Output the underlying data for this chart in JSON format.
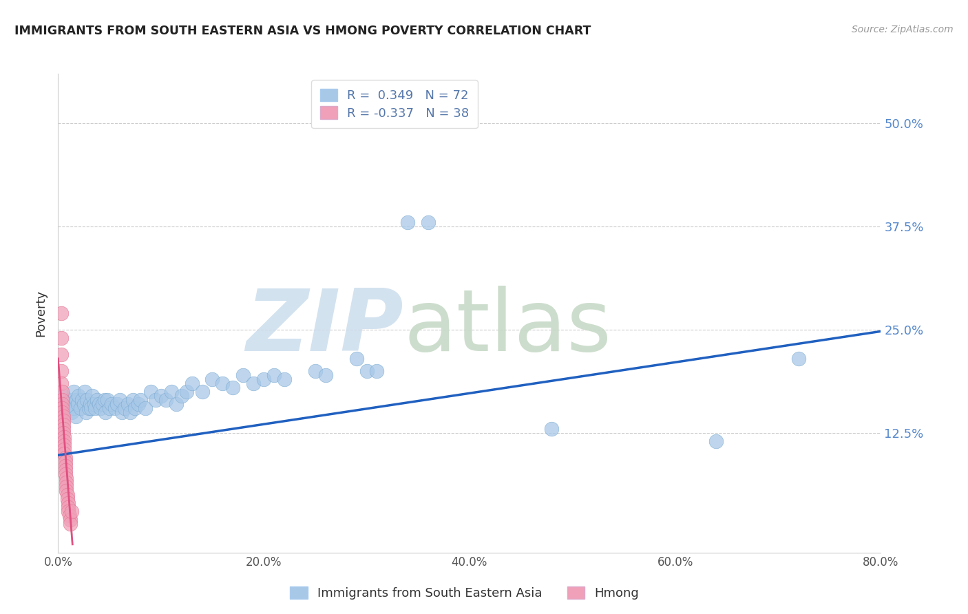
{
  "title": "IMMIGRANTS FROM SOUTH EASTERN ASIA VS HMONG POVERTY CORRELATION CHART",
  "source": "Source: ZipAtlas.com",
  "ylabel": "Poverty",
  "xlim": [
    0.0,
    0.8
  ],
  "ylim": [
    -0.02,
    0.56
  ],
  "ytick_vals": [
    0.125,
    0.25,
    0.375,
    0.5
  ],
  "ytick_labels": [
    "12.5%",
    "25.0%",
    "37.5%",
    "50.0%"
  ],
  "xtick_vals": [
    0.0,
    0.2,
    0.4,
    0.6,
    0.8
  ],
  "xtick_labels": [
    "0.0%",
    "20.0%",
    "40.0%",
    "60.0%",
    "80.0%"
  ],
  "blue_R": 0.349,
  "blue_N": 72,
  "pink_R": -0.337,
  "pink_N": 38,
  "blue_color": "#a8c8e8",
  "pink_color": "#f0a0b8",
  "blue_edge_color": "#7aaad0",
  "pink_edge_color": "#e07090",
  "blue_line_color": "#2060c0",
  "pink_line_color": "#e05080",
  "watermark_zip_color": "#ccdded",
  "watermark_atlas_color": "#c5d8c5",
  "grid_color": "#cccccc",
  "spine_color": "#cccccc",
  "background_color": "#ffffff",
  "blue_scatter_x": [
    0.005,
    0.008,
    0.01,
    0.012,
    0.013,
    0.015,
    0.015,
    0.017,
    0.018,
    0.019,
    0.02,
    0.022,
    0.023,
    0.025,
    0.026,
    0.027,
    0.028,
    0.03,
    0.031,
    0.032,
    0.033,
    0.035,
    0.036,
    0.038,
    0.04,
    0.041,
    0.043,
    0.045,
    0.046,
    0.048,
    0.05,
    0.052,
    0.055,
    0.057,
    0.06,
    0.062,
    0.065,
    0.068,
    0.07,
    0.073,
    0.075,
    0.078,
    0.08,
    0.085,
    0.09,
    0.095,
    0.1,
    0.105,
    0.11,
    0.115,
    0.12,
    0.125,
    0.13,
    0.14,
    0.15,
    0.16,
    0.17,
    0.18,
    0.19,
    0.2,
    0.21,
    0.22,
    0.25,
    0.26,
    0.29,
    0.3,
    0.31,
    0.34,
    0.36,
    0.48,
    0.64,
    0.72
  ],
  "blue_scatter_y": [
    0.17,
    0.155,
    0.16,
    0.165,
    0.15,
    0.155,
    0.175,
    0.145,
    0.165,
    0.16,
    0.17,
    0.155,
    0.165,
    0.16,
    0.175,
    0.15,
    0.165,
    0.155,
    0.16,
    0.155,
    0.17,
    0.16,
    0.155,
    0.165,
    0.16,
    0.155,
    0.16,
    0.165,
    0.15,
    0.165,
    0.155,
    0.16,
    0.155,
    0.16,
    0.165,
    0.15,
    0.155,
    0.16,
    0.15,
    0.165,
    0.155,
    0.16,
    0.165,
    0.155,
    0.175,
    0.165,
    0.17,
    0.165,
    0.175,
    0.16,
    0.17,
    0.175,
    0.185,
    0.175,
    0.19,
    0.185,
    0.18,
    0.195,
    0.185,
    0.19,
    0.195,
    0.19,
    0.2,
    0.195,
    0.215,
    0.2,
    0.2,
    0.38,
    0.38,
    0.13,
    0.115,
    0.215
  ],
  "pink_scatter_x": [
    0.003,
    0.003,
    0.003,
    0.003,
    0.003,
    0.004,
    0.004,
    0.004,
    0.004,
    0.004,
    0.005,
    0.005,
    0.005,
    0.005,
    0.005,
    0.006,
    0.006,
    0.006,
    0.006,
    0.006,
    0.007,
    0.007,
    0.007,
    0.007,
    0.007,
    0.008,
    0.008,
    0.008,
    0.008,
    0.009,
    0.009,
    0.01,
    0.01,
    0.01,
    0.011,
    0.012,
    0.012,
    0.013
  ],
  "pink_scatter_y": [
    0.27,
    0.24,
    0.22,
    0.2,
    0.185,
    0.175,
    0.165,
    0.16,
    0.155,
    0.15,
    0.145,
    0.14,
    0.135,
    0.13,
    0.125,
    0.12,
    0.115,
    0.11,
    0.105,
    0.1,
    0.095,
    0.09,
    0.085,
    0.08,
    0.075,
    0.07,
    0.065,
    0.06,
    0.055,
    0.05,
    0.045,
    0.04,
    0.035,
    0.03,
    0.025,
    0.02,
    0.015,
    0.03
  ],
  "blue_line_x0": 0.0,
  "blue_line_x1": 0.8,
  "blue_line_y0": 0.098,
  "blue_line_y1": 0.248,
  "pink_line_x0": 0.0,
  "pink_line_x1": 0.014,
  "pink_line_y0": 0.215,
  "pink_line_y1": -0.01
}
